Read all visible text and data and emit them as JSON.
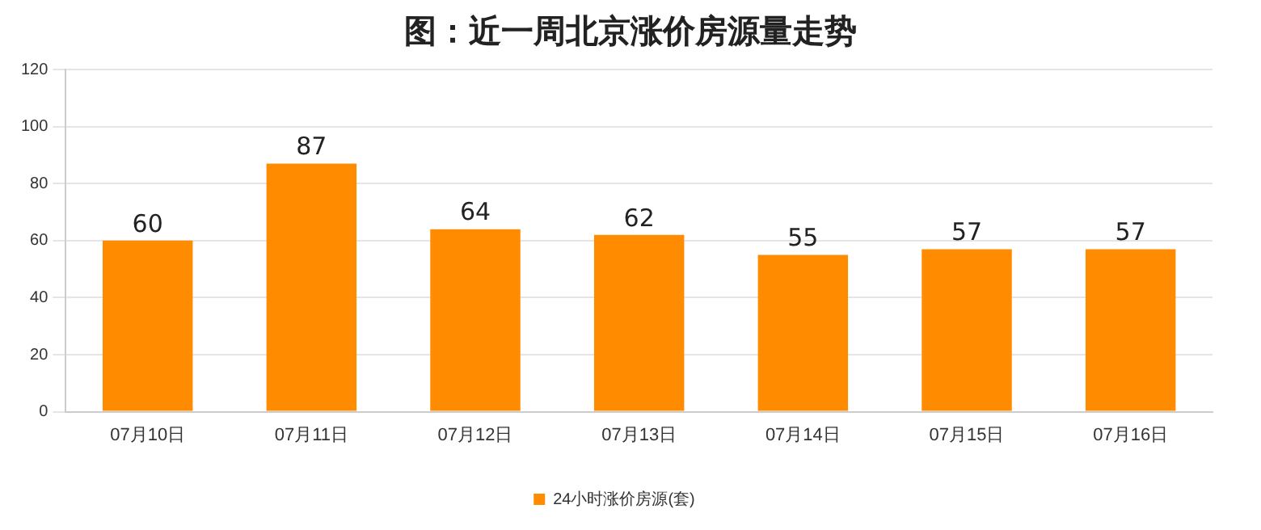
{
  "chart_data": {
    "type": "bar",
    "title": "图：近一周北京涨价房源量走势",
    "categories": [
      "07月10日",
      "07月11日",
      "07月12日",
      "07月13日",
      "07月14日",
      "07月15日",
      "07月16日"
    ],
    "series": [
      {
        "name": "24小时涨价房源(套)",
        "color": "#ff8c00",
        "values": [
          60,
          87,
          64,
          62,
          55,
          57,
          57
        ]
      }
    ],
    "ylim": [
      0,
      120
    ],
    "yticks": [
      0,
      20,
      40,
      60,
      80,
      100,
      120
    ],
    "grid": "y",
    "legend": "bottom",
    "data_labels": true
  }
}
